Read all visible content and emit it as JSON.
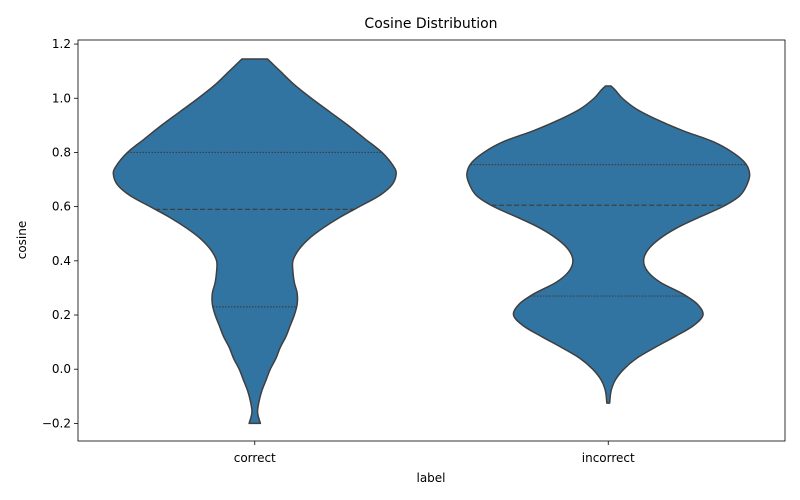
{
  "chart_data": {
    "type": "violin",
    "title": "Cosine Distribution",
    "xlabel": "label",
    "ylabel": "cosine",
    "categories": [
      "correct",
      "incorrect"
    ],
    "ylim": [
      -0.265,
      1.215
    ],
    "yticks": [
      -0.2,
      0.0,
      0.2,
      0.4,
      0.6,
      0.8,
      1.0,
      1.2
    ],
    "ytick_labels": [
      "−0.2",
      "0.0",
      "0.2",
      "0.4",
      "0.6",
      "0.8",
      "1.0",
      "1.2"
    ],
    "color": "#3274a1",
    "edge_color": "#3f3f3f",
    "inner": "quartile",
    "violins": [
      {
        "category": "correct",
        "min": -0.2,
        "max": 1.145,
        "quartiles": [
          0.23,
          0.59,
          0.8
        ],
        "density_profile": [
          [
            1.145,
            0.09
          ],
          [
            1.1,
            0.18
          ],
          [
            1.05,
            0.28
          ],
          [
            1.0,
            0.4
          ],
          [
            0.95,
            0.53
          ],
          [
            0.9,
            0.66
          ],
          [
            0.85,
            0.78
          ],
          [
            0.8,
            0.9
          ],
          [
            0.75,
            0.98
          ],
          [
            0.72,
            1.0
          ],
          [
            0.68,
            0.97
          ],
          [
            0.64,
            0.88
          ],
          [
            0.6,
            0.74
          ],
          [
            0.56,
            0.6
          ],
          [
            0.52,
            0.48
          ],
          [
            0.48,
            0.38
          ],
          [
            0.44,
            0.31
          ],
          [
            0.4,
            0.27
          ],
          [
            0.36,
            0.27
          ],
          [
            0.32,
            0.28
          ],
          [
            0.28,
            0.3
          ],
          [
            0.24,
            0.3
          ],
          [
            0.2,
            0.28
          ],
          [
            0.16,
            0.25
          ],
          [
            0.12,
            0.22
          ],
          [
            0.08,
            0.18
          ],
          [
            0.04,
            0.15
          ],
          [
            0.0,
            0.11
          ],
          [
            -0.04,
            0.08
          ],
          [
            -0.08,
            0.05
          ],
          [
            -0.12,
            0.03
          ],
          [
            -0.16,
            0.02
          ],
          [
            -0.2,
            0.04
          ]
        ]
      },
      {
        "category": "incorrect",
        "min": -0.125,
        "max": 1.045,
        "quartiles": [
          0.27,
          0.605,
          0.755
        ],
        "density_profile": [
          [
            1.045,
            0.02
          ],
          [
            1.03,
            0.05
          ],
          [
            1.0,
            0.1
          ],
          [
            0.96,
            0.2
          ],
          [
            0.92,
            0.35
          ],
          [
            0.88,
            0.53
          ],
          [
            0.84,
            0.74
          ],
          [
            0.8,
            0.88
          ],
          [
            0.76,
            0.97
          ],
          [
            0.72,
            1.0
          ],
          [
            0.68,
            0.98
          ],
          [
            0.64,
            0.93
          ],
          [
            0.6,
            0.81
          ],
          [
            0.56,
            0.64
          ],
          [
            0.52,
            0.48
          ],
          [
            0.48,
            0.36
          ],
          [
            0.44,
            0.28
          ],
          [
            0.4,
            0.25
          ],
          [
            0.36,
            0.28
          ],
          [
            0.32,
            0.37
          ],
          [
            0.28,
            0.52
          ],
          [
            0.24,
            0.63
          ],
          [
            0.2,
            0.67
          ],
          [
            0.16,
            0.6
          ],
          [
            0.12,
            0.47
          ],
          [
            0.08,
            0.33
          ],
          [
            0.04,
            0.2
          ],
          [
            0.0,
            0.11
          ],
          [
            -0.04,
            0.05
          ],
          [
            -0.08,
            0.02
          ],
          [
            -0.125,
            0.01
          ]
        ]
      }
    ]
  }
}
